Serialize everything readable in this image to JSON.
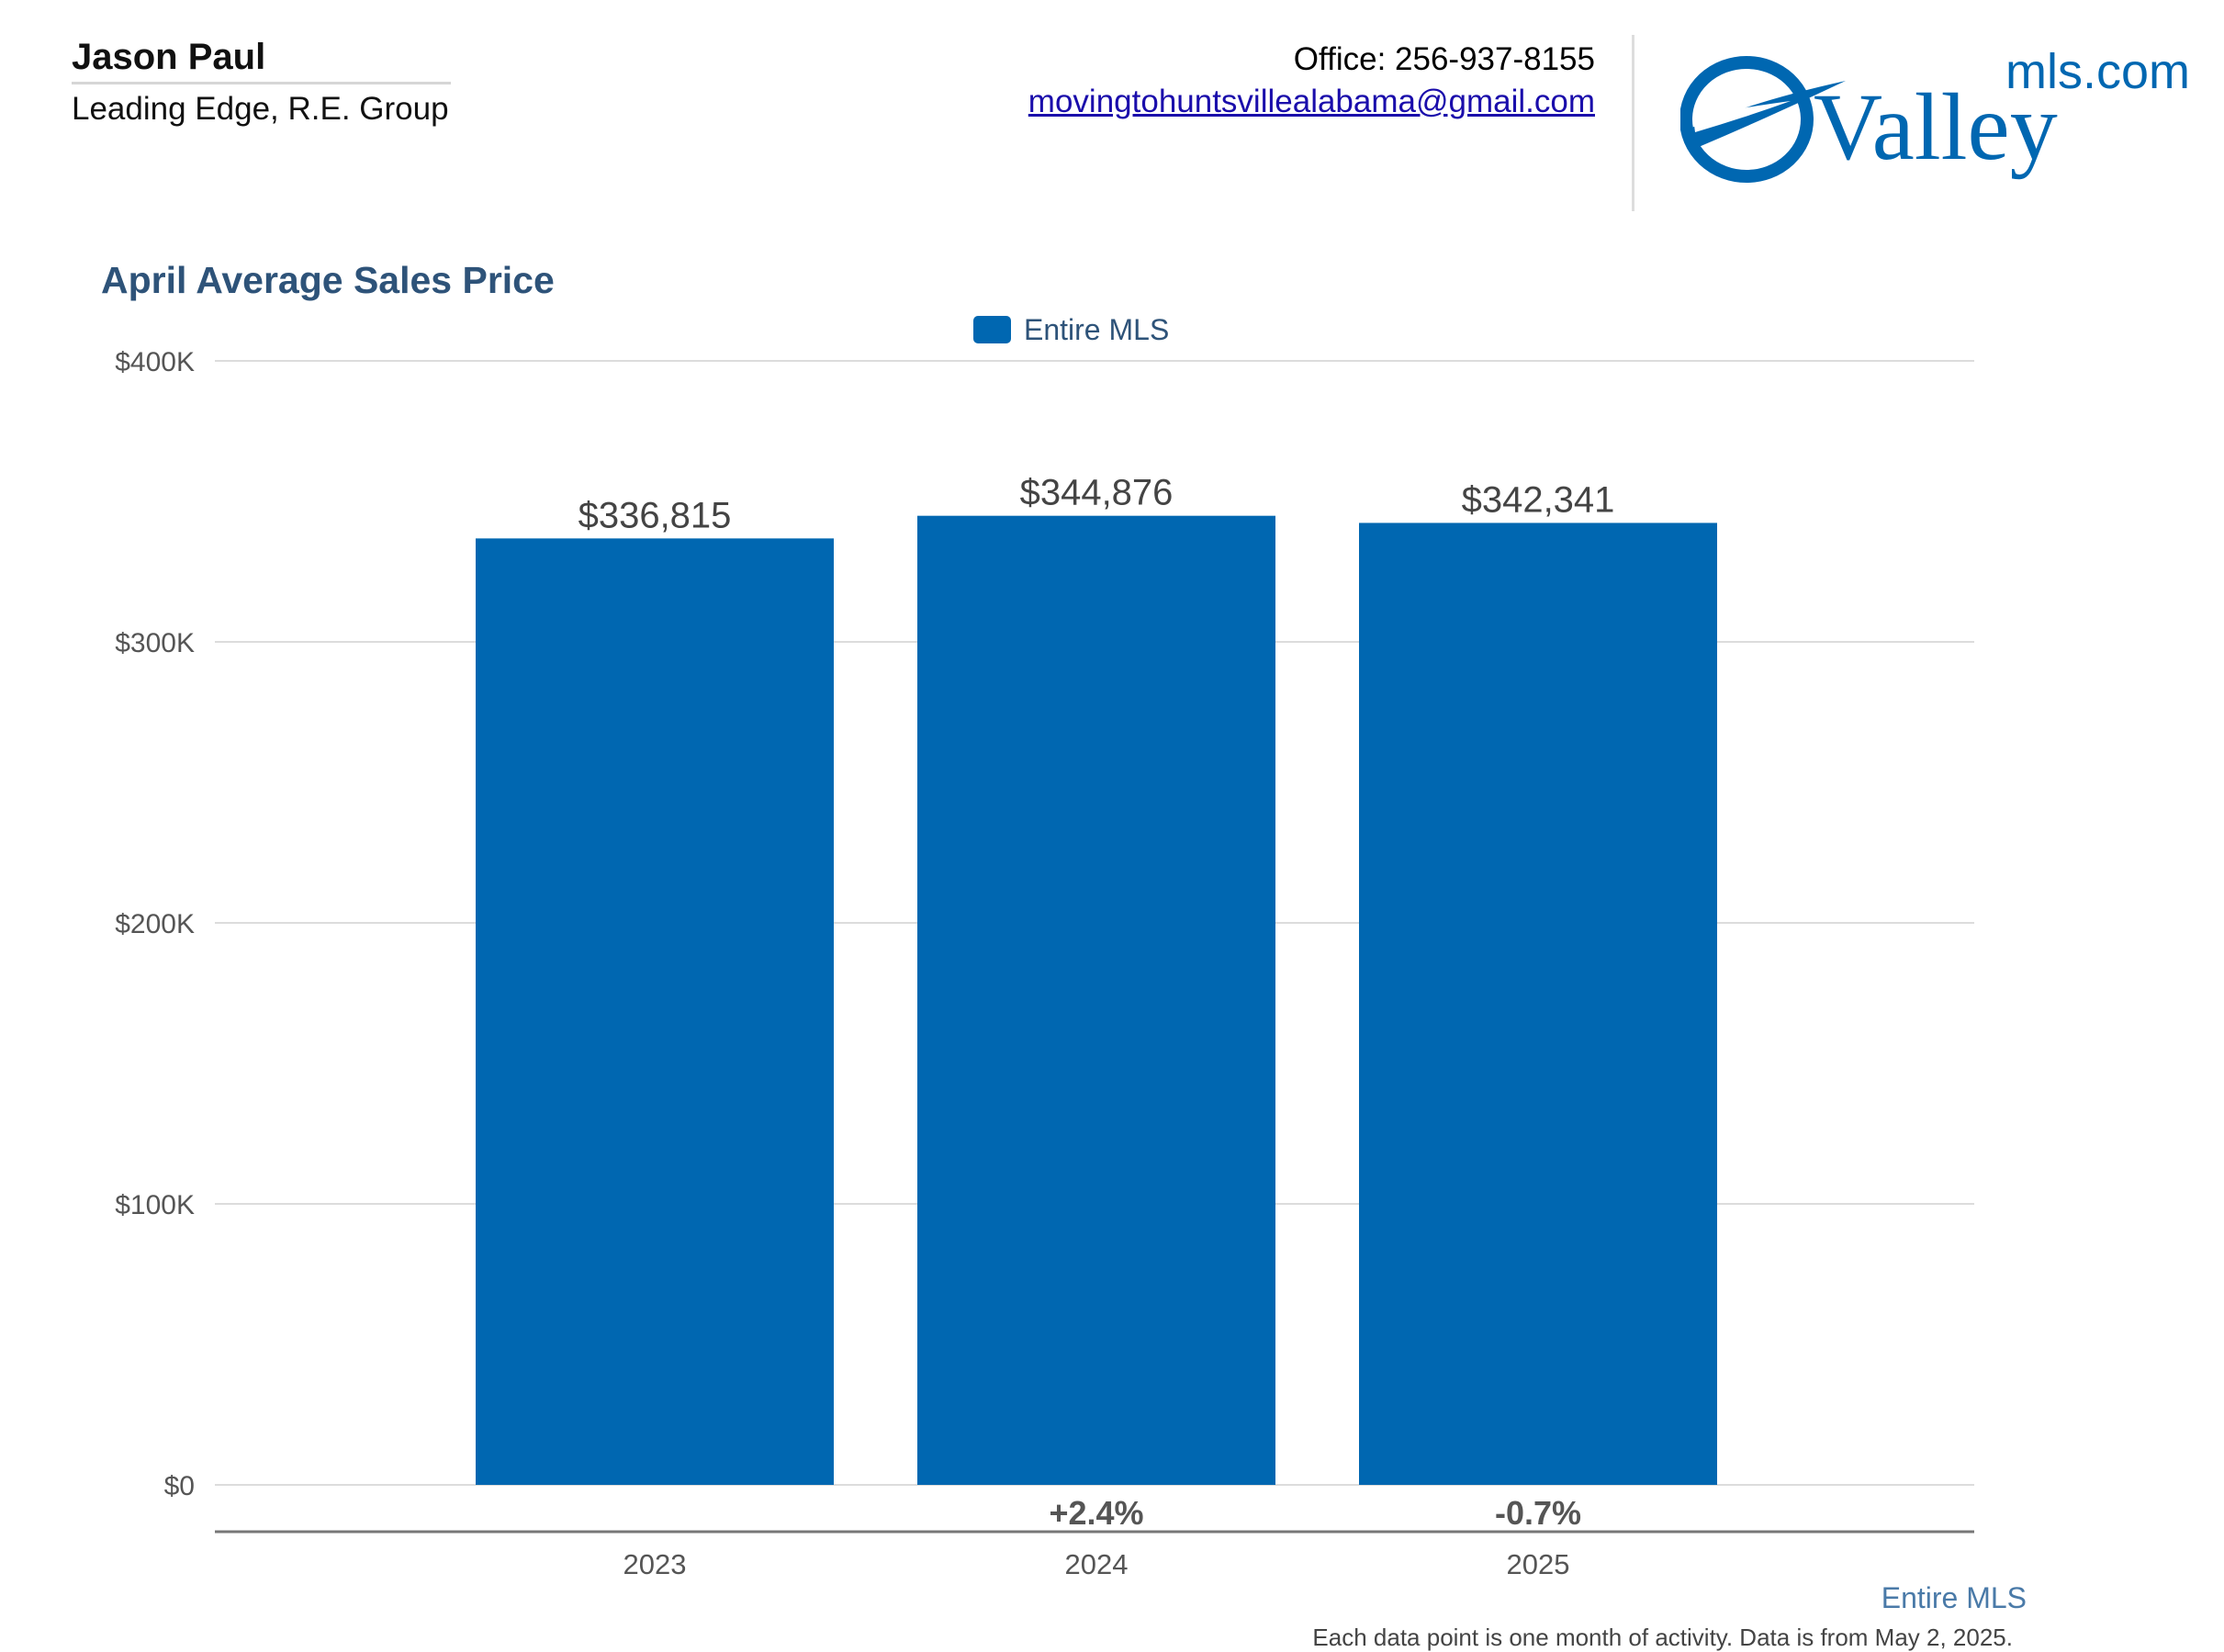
{
  "header": {
    "agent_name": "Jason Paul",
    "company": "Leading Edge, R.E. Group",
    "phone_text": "Office: 256-937-8155",
    "email": "movingtohuntsvillealabama@gmail.com"
  },
  "logo": {
    "word": "Valley",
    "suffix": "mls.com",
    "color": "#0067b1"
  },
  "chart_data": {
    "type": "bar",
    "title": "April Average Sales Price",
    "xlabel": "",
    "ylabel": "",
    "categories": [
      "2023",
      "2024",
      "2025"
    ],
    "series": [
      {
        "name": "Entire MLS",
        "values": [
          336815,
          344876,
          342341
        ],
        "labels": [
          "$336,815",
          "$344,876",
          "$342,341"
        ],
        "color": "#0067b1"
      }
    ],
    "change_labels": [
      "",
      "+2.4%",
      "-0.7%"
    ],
    "yticks": [
      {
        "value": 0,
        "label": "$0"
      },
      {
        "value": 100000,
        "label": "$100K"
      },
      {
        "value": 200000,
        "label": "$200K"
      },
      {
        "value": 300000,
        "label": "$300K"
      },
      {
        "value": 400000,
        "label": "$400K"
      }
    ],
    "ylim": [
      0,
      400000
    ],
    "grid": true,
    "legend_position": "top-center"
  },
  "footer": {
    "series_caption": "Entire MLS",
    "note": "Each data point is one month of activity. Data is from May 2, 2025."
  }
}
